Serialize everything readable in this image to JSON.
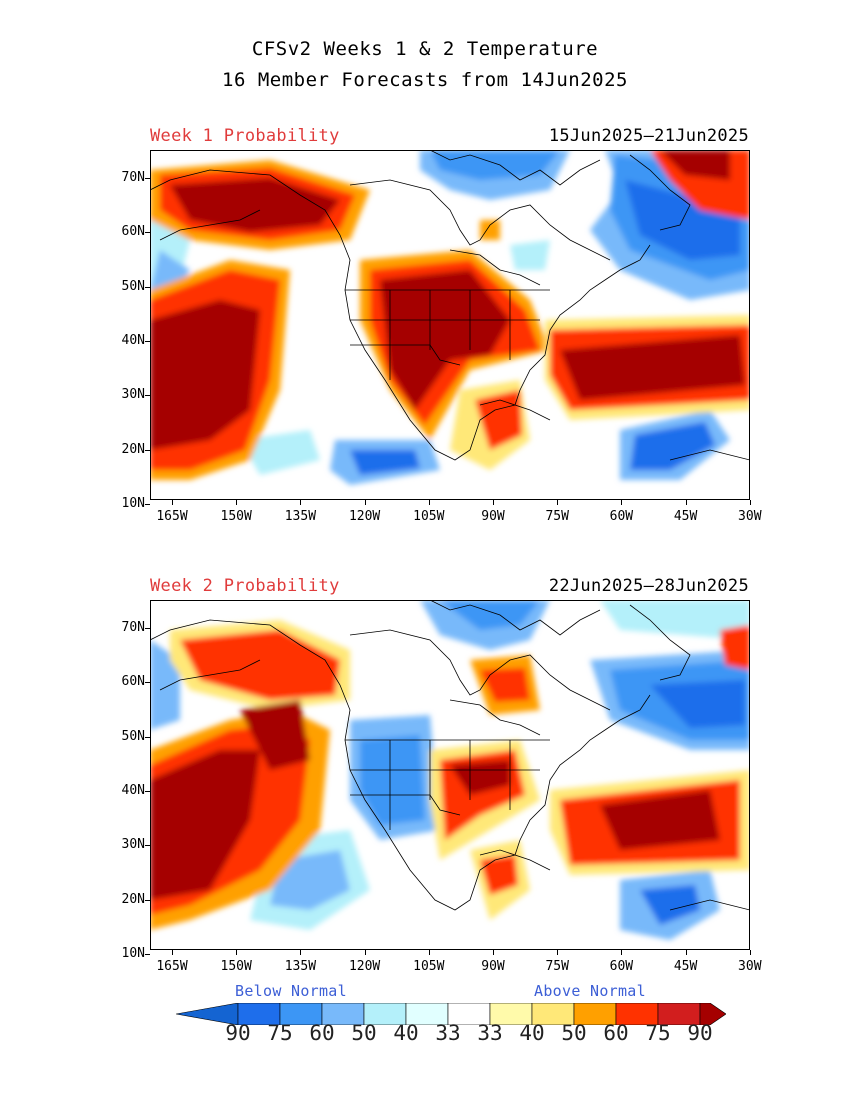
{
  "title_line1": "CFSv2 Weeks 1 & 2 Temperature",
  "title_line2": "16 Member Forecasts from 14Jun2025",
  "panels": [
    {
      "label": "Week 1 Probability",
      "dates": "15Jun2025—21Jun2025"
    },
    {
      "label": "Week 2 Probability",
      "dates": "22Jun2025—28Jun2025"
    }
  ],
  "lat_labels": [
    "70N",
    "60N",
    "50N",
    "40N",
    "30N",
    "20N",
    "10N"
  ],
  "lon_labels": [
    "165W",
    "150W",
    "135W",
    "120W",
    "105W",
    "90W",
    "75W",
    "60W",
    "45W",
    "30W"
  ],
  "legend": {
    "below_label": "Below Normal",
    "above_label": "Above Normal",
    "values": [
      "90",
      "75",
      "60",
      "50",
      "40",
      "33",
      "33",
      "40",
      "50",
      "60",
      "75",
      "90"
    ],
    "colors": [
      "#1464d2",
      "#1e6eeb",
      "#3c96f5",
      "#78b9fa",
      "#b4f0fa",
      "#e1ffff",
      "#ffffff",
      "#fffaaa",
      "#ffe878",
      "#ffa000",
      "#ff3200",
      "#d21e1e",
      "#a50000"
    ]
  }
}
